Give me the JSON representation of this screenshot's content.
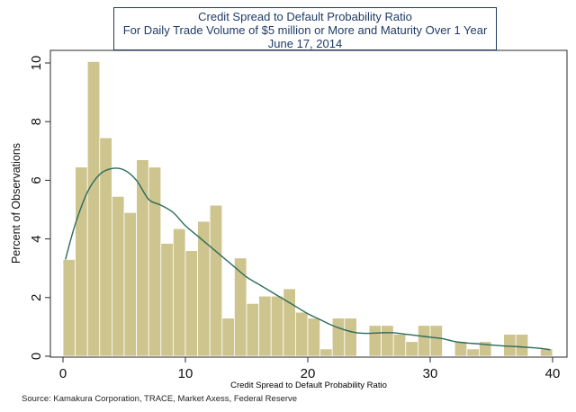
{
  "chart_data": {
    "type": "bar",
    "title": "Credit Spread to Default Probability Ratio",
    "subtitle": "For Daily Trade Volume of $5 million or More and Maturity Over 1 Year",
    "date": "June 17, 2014",
    "xlabel": "Credit Spread to Default Probability Ratio",
    "ylabel": "Percent of Observations",
    "xlim": [
      0,
      40
    ],
    "ylim": [
      0,
      10
    ],
    "x_ticks": [
      0,
      10,
      20,
      30,
      40
    ],
    "y_ticks": [
      0,
      2,
      4,
      6,
      8,
      10
    ],
    "bin_width": 1,
    "bar_color": "#cec48e",
    "bar_edge_color": "#ffffff",
    "line_color": "#2b6b5c",
    "bins": [
      {
        "x0": 0,
        "value": 3.3
      },
      {
        "x0": 1,
        "value": 6.45
      },
      {
        "x0": 2,
        "value": 10.05
      },
      {
        "x0": 3,
        "value": 7.45
      },
      {
        "x0": 4,
        "value": 5.45
      },
      {
        "x0": 5,
        "value": 4.9
      },
      {
        "x0": 6,
        "value": 6.7
      },
      {
        "x0": 7,
        "value": 6.45
      },
      {
        "x0": 8,
        "value": 3.85
      },
      {
        "x0": 9,
        "value": 4.35
      },
      {
        "x0": 10,
        "value": 3.6
      },
      {
        "x0": 11,
        "value": 4.6
      },
      {
        "x0": 12,
        "value": 5.15
      },
      {
        "x0": 13,
        "value": 1.3
      },
      {
        "x0": 14,
        "value": 3.35
      },
      {
        "x0": 15,
        "value": 1.8
      },
      {
        "x0": 16,
        "value": 2.05
      },
      {
        "x0": 17,
        "value": 2.05
      },
      {
        "x0": 18,
        "value": 2.3
      },
      {
        "x0": 19,
        "value": 1.5
      },
      {
        "x0": 20,
        "value": 1.3
      },
      {
        "x0": 21,
        "value": 0.25
      },
      {
        "x0": 22,
        "value": 1.3
      },
      {
        "x0": 23,
        "value": 1.3
      },
      {
        "x0": 25,
        "value": 1.05
      },
      {
        "x0": 26,
        "value": 1.05
      },
      {
        "x0": 27,
        "value": 0.75
      },
      {
        "x0": 28,
        "value": 0.5
      },
      {
        "x0": 29,
        "value": 1.05
      },
      {
        "x0": 30,
        "value": 1.05
      },
      {
        "x0": 32,
        "value": 0.5
      },
      {
        "x0": 33,
        "value": 0.25
      },
      {
        "x0": 34,
        "value": 0.5
      },
      {
        "x0": 36,
        "value": 0.75
      },
      {
        "x0": 37,
        "value": 0.75
      },
      {
        "x0": 39,
        "value": 0.25
      }
    ],
    "density_curve": [
      [
        0.2,
        3.3
      ],
      [
        1,
        4.5
      ],
      [
        2,
        5.6
      ],
      [
        3,
        6.2
      ],
      [
        4,
        6.4
      ],
      [
        5,
        6.35
      ],
      [
        6,
        6.0
      ],
      [
        7,
        5.35
      ],
      [
        8,
        5.15
      ],
      [
        9,
        4.9
      ],
      [
        10,
        4.45
      ],
      [
        11,
        4.1
      ],
      [
        12,
        3.75
      ],
      [
        13,
        3.4
      ],
      [
        14,
        3.05
      ],
      [
        15,
        2.7
      ],
      [
        16,
        2.45
      ],
      [
        17,
        2.2
      ],
      [
        18,
        1.95
      ],
      [
        19,
        1.7
      ],
      [
        20,
        1.45
      ],
      [
        21,
        1.25
      ],
      [
        22,
        1.05
      ],
      [
        23,
        0.9
      ],
      [
        24,
        0.8
      ],
      [
        25,
        0.78
      ],
      [
        26,
        0.8
      ],
      [
        27,
        0.8
      ],
      [
        28,
        0.75
      ],
      [
        29,
        0.7
      ],
      [
        30,
        0.65
      ],
      [
        31,
        0.6
      ],
      [
        32,
        0.5
      ],
      [
        33,
        0.45
      ],
      [
        34,
        0.42
      ],
      [
        35,
        0.38
      ],
      [
        36,
        0.35
      ],
      [
        37,
        0.33
      ],
      [
        38,
        0.3
      ],
      [
        39,
        0.27
      ],
      [
        39.8,
        0.22
      ]
    ]
  },
  "source": "Source: Kamakura Corporation, TRACE, Market Axess, Federal Reserve"
}
